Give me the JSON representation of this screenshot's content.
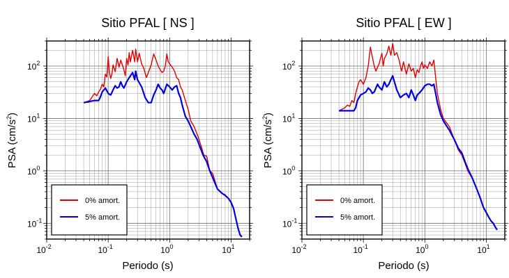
{
  "chart_data": [
    {
      "type": "line",
      "title": "Sitio PFAL [ NS ]",
      "xlabel": "Periodo (s)",
      "ylabel_main": "PSA (cm/s",
      "ylabel_sup": "2",
      "ylabel_end": ")",
      "xscale": "log",
      "yscale": "log",
      "xlim": [
        0.01,
        20
      ],
      "ylim": [
        0.05,
        300
      ],
      "grid": true,
      "legend_position": "bottom-left",
      "x_ticks": [
        {
          "base": "10",
          "exp": "-2"
        },
        {
          "base": "10",
          "exp": "-1"
        },
        {
          "base": "10",
          "exp": "0"
        },
        {
          "base": "10",
          "exp": "1"
        }
      ],
      "y_ticks": [
        {
          "base": "10",
          "exp": "-1"
        },
        {
          "base": "10",
          "exp": "0"
        },
        {
          "base": "10",
          "exp": "1"
        },
        {
          "base": "10",
          "exp": "2"
        }
      ],
      "series": [
        {
          "name": "0% amort.",
          "color": "#e00000",
          "points": [
            [
              0.04,
              20
            ],
            [
              0.045,
              21
            ],
            [
              0.05,
              22
            ],
            [
              0.055,
              26
            ],
            [
              0.06,
              30
            ],
            [
              0.065,
              27
            ],
            [
              0.07,
              32
            ],
            [
              0.075,
              36
            ],
            [
              0.08,
              45
            ],
            [
              0.085,
              40
            ],
            [
              0.09,
              70
            ],
            [
              0.095,
              62
            ],
            [
              0.1,
              150
            ],
            [
              0.105,
              75
            ],
            [
              0.11,
              58
            ],
            [
              0.115,
              70
            ],
            [
              0.12,
              105
            ],
            [
              0.13,
              78
            ],
            [
              0.14,
              140
            ],
            [
              0.15,
              95
            ],
            [
              0.16,
              130
            ],
            [
              0.17,
              105
            ],
            [
              0.18,
              85
            ],
            [
              0.19,
              65
            ],
            [
              0.2,
              140
            ],
            [
              0.21,
              105
            ],
            [
              0.22,
              180
            ],
            [
              0.23,
              120
            ],
            [
              0.25,
              200
            ],
            [
              0.27,
              120
            ],
            [
              0.28,
              210
            ],
            [
              0.3,
              120
            ],
            [
              0.32,
              175
            ],
            [
              0.35,
              110
            ],
            [
              0.38,
              90
            ],
            [
              0.42,
              60
            ],
            [
              0.45,
              75
            ],
            [
              0.5,
              105
            ],
            [
              0.55,
              170
            ],
            [
              0.6,
              130
            ],
            [
              0.65,
              100
            ],
            [
              0.7,
              85
            ],
            [
              0.75,
              75
            ],
            [
              0.8,
              80
            ],
            [
              0.85,
              100
            ],
            [
              0.9,
              170
            ],
            [
              0.95,
              120
            ],
            [
              1.0,
              110
            ],
            [
              1.1,
              95
            ],
            [
              1.2,
              80
            ],
            [
              1.3,
              60
            ],
            [
              1.4,
              55
            ],
            [
              1.5,
              40
            ],
            [
              1.6,
              35
            ],
            [
              1.8,
              22
            ],
            [
              2.0,
              15
            ],
            [
              2.2,
              9
            ],
            [
              2.5,
              7
            ],
            [
              2.8,
              5
            ],
            [
              3.0,
              4
            ],
            [
              3.3,
              2.8
            ],
            [
              3.6,
              2.0
            ],
            [
              4.0,
              1.9
            ],
            [
              4.5,
              1.0
            ],
            [
              5.0,
              0.9
            ],
            [
              6.0,
              0.45
            ],
            [
              7.0,
              0.38
            ],
            [
              8.0,
              0.35
            ],
            [
              9.0,
              0.3
            ],
            [
              10.0,
              0.25
            ],
            [
              11.0,
              0.19
            ],
            [
              12.0,
              0.12
            ],
            [
              13.0,
              0.08
            ],
            [
              14.0,
              0.06
            ],
            [
              15.0,
              0.055
            ]
          ]
        },
        {
          "name": "5% amort.",
          "color": "#0000e0",
          "points": [
            [
              0.04,
              20
            ],
            [
              0.05,
              21
            ],
            [
              0.06,
              22
            ],
            [
              0.07,
              22
            ],
            [
              0.075,
              26
            ],
            [
              0.08,
              32
            ],
            [
              0.09,
              38
            ],
            [
              0.1,
              30
            ],
            [
              0.11,
              28
            ],
            [
              0.12,
              35
            ],
            [
              0.13,
              42
            ],
            [
              0.14,
              38
            ],
            [
              0.15,
              40
            ],
            [
              0.16,
              50
            ],
            [
              0.17,
              42
            ],
            [
              0.18,
              38
            ],
            [
              0.2,
              50
            ],
            [
              0.22,
              60
            ],
            [
              0.25,
              75
            ],
            [
              0.27,
              55
            ],
            [
              0.28,
              80
            ],
            [
              0.3,
              55
            ],
            [
              0.35,
              40
            ],
            [
              0.4,
              25
            ],
            [
              0.45,
              20
            ],
            [
              0.5,
              20
            ],
            [
              0.55,
              28
            ],
            [
              0.6,
              35
            ],
            [
              0.65,
              45
            ],
            [
              0.7,
              38
            ],
            [
              0.75,
              35
            ],
            [
              0.8,
              30
            ],
            [
              0.9,
              45
            ],
            [
              1.0,
              40
            ],
            [
              1.1,
              35
            ],
            [
              1.2,
              40
            ],
            [
              1.3,
              42
            ],
            [
              1.4,
              30
            ],
            [
              1.5,
              25
            ],
            [
              1.6,
              18
            ],
            [
              1.8,
              11
            ],
            [
              2.0,
              9
            ],
            [
              2.2,
              7
            ],
            [
              2.5,
              5
            ],
            [
              2.8,
              4
            ],
            [
              3.0,
              3.2
            ],
            [
              3.5,
              2.0
            ],
            [
              4.0,
              1.5
            ],
            [
              4.5,
              1.0
            ],
            [
              5.0,
              0.75
            ],
            [
              6.0,
              0.45
            ],
            [
              7.0,
              0.38
            ],
            [
              8.0,
              0.34
            ],
            [
              9.0,
              0.3
            ],
            [
              10.0,
              0.25
            ],
            [
              11.0,
              0.19
            ],
            [
              12.0,
              0.12
            ],
            [
              13.0,
              0.08
            ],
            [
              14.0,
              0.06
            ],
            [
              15.0,
              0.055
            ]
          ]
        }
      ]
    },
    {
      "type": "line",
      "title": "Sitio PFAL [ EW ]",
      "xlabel": "Periodo (s)",
      "ylabel_main": "PSA (cm/s",
      "ylabel_sup": "2",
      "ylabel_end": ")",
      "xscale": "log",
      "yscale": "log",
      "xlim": [
        0.01,
        20
      ],
      "ylim": [
        0.05,
        300
      ],
      "grid": true,
      "legend_position": "bottom-left",
      "x_ticks": [
        {
          "base": "10",
          "exp": "-2"
        },
        {
          "base": "10",
          "exp": "-1"
        },
        {
          "base": "10",
          "exp": "0"
        },
        {
          "base": "10",
          "exp": "1"
        }
      ],
      "y_ticks": [
        {
          "base": "10",
          "exp": "-1"
        },
        {
          "base": "10",
          "exp": "0"
        },
        {
          "base": "10",
          "exp": "1"
        },
        {
          "base": "10",
          "exp": "2"
        }
      ],
      "series": [
        {
          "name": "0% amort.",
          "color": "#e00000",
          "points": [
            [
              0.04,
              14
            ],
            [
              0.045,
              15
            ],
            [
              0.05,
              16
            ],
            [
              0.055,
              18
            ],
            [
              0.06,
              17
            ],
            [
              0.065,
              22
            ],
            [
              0.07,
              20
            ],
            [
              0.075,
              30
            ],
            [
              0.08,
              40
            ],
            [
              0.085,
              50
            ],
            [
              0.09,
              55
            ],
            [
              0.1,
              45
            ],
            [
              0.11,
              60
            ],
            [
              0.12,
              100
            ],
            [
              0.13,
              230
            ],
            [
              0.14,
              150
            ],
            [
              0.15,
              100
            ],
            [
              0.16,
              80
            ],
            [
              0.17,
              95
            ],
            [
              0.18,
              110
            ],
            [
              0.19,
              140
            ],
            [
              0.2,
              175
            ],
            [
              0.21,
              100
            ],
            [
              0.22,
              140
            ],
            [
              0.24,
              170
            ],
            [
              0.26,
              240
            ],
            [
              0.28,
              160
            ],
            [
              0.3,
              270
            ],
            [
              0.32,
              160
            ],
            [
              0.35,
              180
            ],
            [
              0.38,
              130
            ],
            [
              0.4,
              100
            ],
            [
              0.42,
              80
            ],
            [
              0.45,
              120
            ],
            [
              0.5,
              70
            ],
            [
              0.55,
              110
            ],
            [
              0.6,
              80
            ],
            [
              0.65,
              90
            ],
            [
              0.7,
              60
            ],
            [
              0.75,
              85
            ],
            [
              0.8,
              75
            ],
            [
              0.85,
              100
            ],
            [
              0.9,
              120
            ],
            [
              0.95,
              90
            ],
            [
              1.0,
              105
            ],
            [
              1.1,
              90
            ],
            [
              1.2,
              120
            ],
            [
              1.3,
              100
            ],
            [
              1.4,
              130
            ],
            [
              1.5,
              60
            ],
            [
              1.6,
              30
            ],
            [
              1.8,
              15
            ],
            [
              2.0,
              10
            ],
            [
              2.5,
              7
            ],
            [
              3.0,
              4
            ],
            [
              3.5,
              2.5
            ],
            [
              4.0,
              2.0
            ],
            [
              4.5,
              1.4
            ],
            [
              5.0,
              1.0
            ],
            [
              6.0,
              0.7
            ],
            [
              7.0,
              0.45
            ],
            [
              8.0,
              0.3
            ],
            [
              9.0,
              0.2
            ],
            [
              10.0,
              0.16
            ],
            [
              11.0,
              0.13
            ],
            [
              12.0,
              0.11
            ],
            [
              13.0,
              0.1
            ],
            [
              14.0,
              0.085
            ],
            [
              15.0,
              0.075
            ]
          ]
        },
        {
          "name": "5% amort.",
          "color": "#0000e0",
          "points": [
            [
              0.04,
              14
            ],
            [
              0.05,
              14
            ],
            [
              0.06,
              14
            ],
            [
              0.07,
              14
            ],
            [
              0.075,
              16
            ],
            [
              0.08,
              22
            ],
            [
              0.09,
              28
            ],
            [
              0.1,
              30
            ],
            [
              0.11,
              32
            ],
            [
              0.12,
              38
            ],
            [
              0.13,
              35
            ],
            [
              0.14,
              30
            ],
            [
              0.15,
              32
            ],
            [
              0.16,
              38
            ],
            [
              0.17,
              45
            ],
            [
              0.18,
              40
            ],
            [
              0.2,
              35
            ],
            [
              0.22,
              50
            ],
            [
              0.24,
              40
            ],
            [
              0.26,
              45
            ],
            [
              0.28,
              55
            ],
            [
              0.3,
              65
            ],
            [
              0.32,
              50
            ],
            [
              0.35,
              35
            ],
            [
              0.4,
              25
            ],
            [
              0.45,
              28
            ],
            [
              0.5,
              30
            ],
            [
              0.55,
              25
            ],
            [
              0.6,
              35
            ],
            [
              0.65,
              28
            ],
            [
              0.7,
              22
            ],
            [
              0.75,
              28
            ],
            [
              0.8,
              30
            ],
            [
              0.9,
              35
            ],
            [
              1.0,
              42
            ],
            [
              1.1,
              45
            ],
            [
              1.2,
              45
            ],
            [
              1.3,
              42
            ],
            [
              1.4,
              45
            ],
            [
              1.5,
              30
            ],
            [
              1.6,
              20
            ],
            [
              1.8,
              12
            ],
            [
              2.0,
              9
            ],
            [
              2.5,
              6
            ],
            [
              3.0,
              4
            ],
            [
              3.5,
              2.7
            ],
            [
              4.0,
              2.2
            ],
            [
              4.5,
              1.5
            ],
            [
              5.0,
              1.1
            ],
            [
              6.0,
              0.7
            ],
            [
              7.0,
              0.45
            ],
            [
              8.0,
              0.3
            ],
            [
              9.0,
              0.2
            ],
            [
              10.0,
              0.16
            ],
            [
              11.0,
              0.13
            ],
            [
              12.0,
              0.11
            ],
            [
              13.0,
              0.1
            ],
            [
              14.0,
              0.085
            ],
            [
              15.0,
              0.075
            ]
          ]
        }
      ]
    }
  ]
}
